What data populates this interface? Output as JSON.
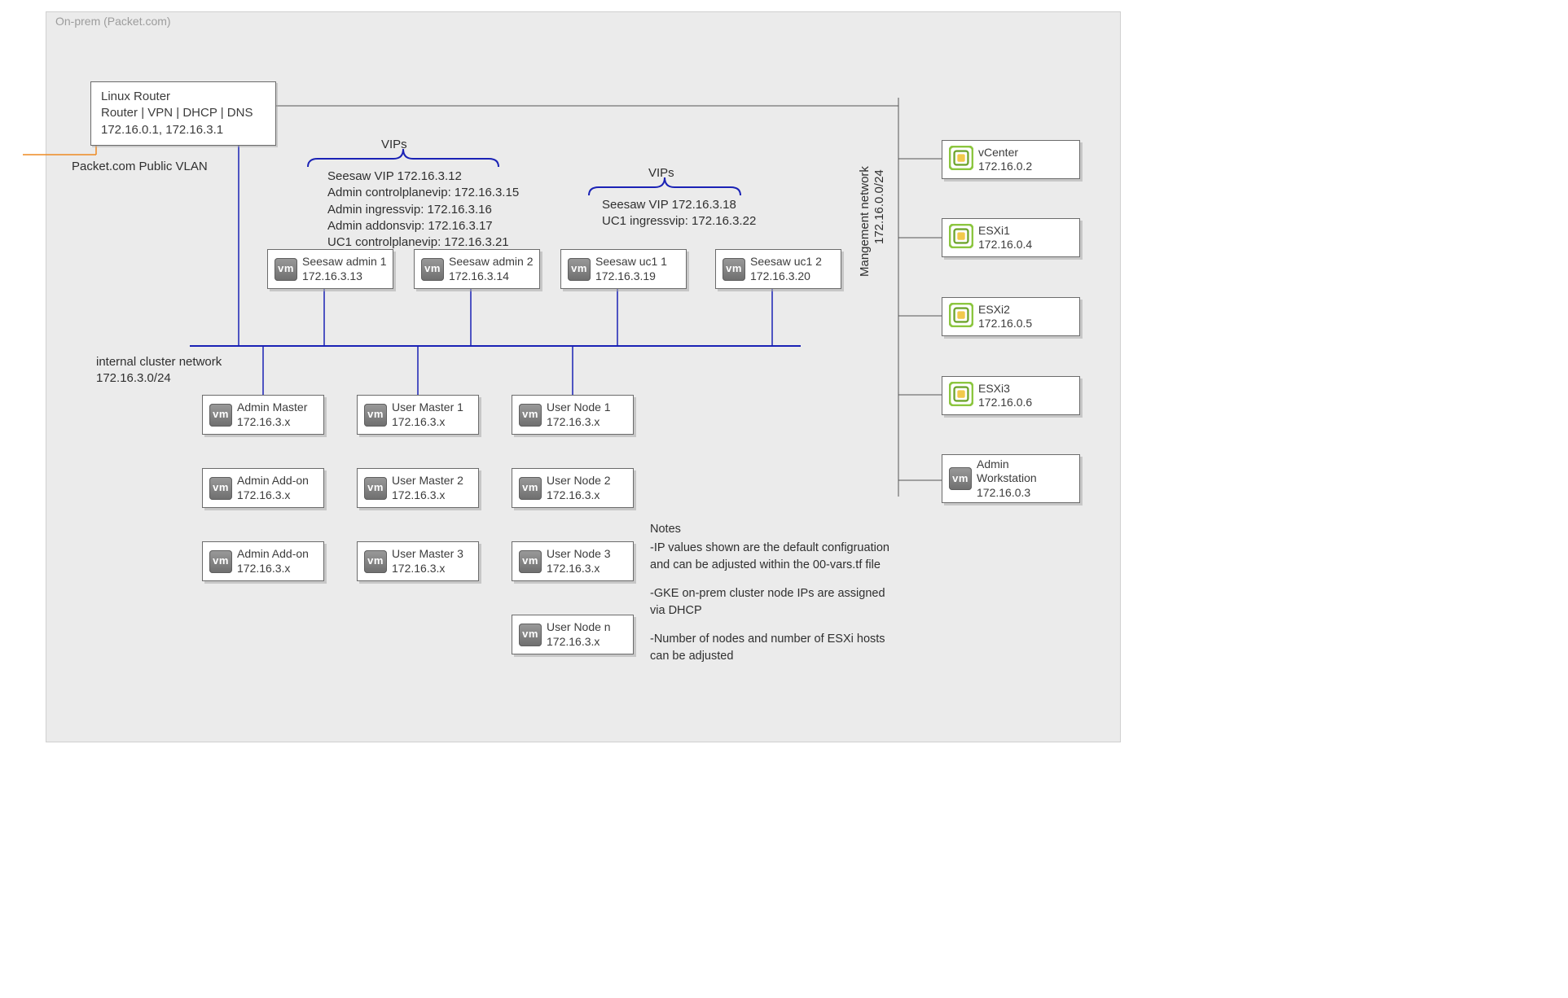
{
  "colors": {
    "panel_bg": "#ebebeb",
    "panel_border": "#d0d0d0",
    "box_bg": "#ffffff",
    "box_border": "#6b6b6b",
    "box_shadow": "rgba(170,170,170,.55)",
    "line_blue": "#1a22b5",
    "line_black": "#555555",
    "line_orange": "#ee8a22",
    "vsphere_green": "#8cc63f",
    "vsphere_green_dark": "#6fa52f",
    "vsphere_gold": "#f2c94c",
    "vm_grad_light": "#9a9a9a",
    "vm_grad_dark": "#6e6e6e",
    "text": "#3c3c3c",
    "muted": "#9c9c9c"
  },
  "panel": {
    "title": "On-prem (Packet.com)"
  },
  "router": {
    "line1": "Linux Router",
    "line2": "Router | VPN | DHCP | DNS",
    "line3": "172.16.0.1, 172.16.3.1"
  },
  "public_vlan_label": "Packet.com Public VLAN",
  "vips_label_left": "VIPs",
  "vips_label_right": "VIPs",
  "vips_left": [
    "Seesaw VIP 172.16.3.12",
    "Admin controlplanevip: 172.16.3.15",
    "Admin ingressvip: 172.16.3.16",
    "Admin addonsvip: 172.16.3.17",
    "UC1 controlplanevip: 172.16.3.21"
  ],
  "vips_right": [
    "Seesaw VIP 172.16.3.18",
    "UC1 ingressvip: 172.16.3.22"
  ],
  "seesaw": [
    {
      "name": "Seesaw admin 1",
      "ip": "172.16.3.13"
    },
    {
      "name": "Seesaw admin 2",
      "ip": "172.16.3.14"
    },
    {
      "name": "Seesaw uc1 1",
      "ip": "172.16.3.19"
    },
    {
      "name": "Seesaw uc1 2",
      "ip": "172.16.3.20"
    }
  ],
  "cluster_net": {
    "line1": "internal cluster network",
    "line2": "172.16.3.0/24"
  },
  "nodes_col1": [
    {
      "name": "Admin Master",
      "ip": "172.16.3.x"
    },
    {
      "name": "Admin Add-on",
      "ip": "172.16.3.x"
    },
    {
      "name": "Admin Add-on",
      "ip": "172.16.3.x"
    }
  ],
  "nodes_col2": [
    {
      "name": "User Master 1",
      "ip": "172.16.3.x"
    },
    {
      "name": "User Master 2",
      "ip": "172.16.3.x"
    },
    {
      "name": "User Master 3",
      "ip": "172.16.3.x"
    }
  ],
  "nodes_col3": [
    {
      "name": "User Node 1",
      "ip": "172.16.3.x"
    },
    {
      "name": "User Node 2",
      "ip": "172.16.3.x"
    },
    {
      "name": "User Node 3",
      "ip": "172.16.3.x"
    },
    {
      "name": "User Node n",
      "ip": "172.16.3.x"
    }
  ],
  "mgmt_net": {
    "line1": "Mangement network",
    "line2": "172.16.0.0/24"
  },
  "mgmt_hosts": [
    {
      "name": "vCenter",
      "ip": "172.16.0.2",
      "icon": "vsphere"
    },
    {
      "name": "ESXi1",
      "ip": "172.16.0.4",
      "icon": "vsphere"
    },
    {
      "name": "ESXi2",
      "ip": "172.16.0.5",
      "icon": "vsphere"
    },
    {
      "name": "ESXi3",
      "ip": "172.16.0.6",
      "icon": "vsphere"
    },
    {
      "name": "Admin\nWorkstation",
      "ip": "172.16.0.3",
      "icon": "vm"
    }
  ],
  "notes": {
    "heading": "Notes",
    "items": [
      "-IP values shown are the default configruation and can be adjusted within the 00-vars.tf file",
      "-GKE on-prem cluster node IPs are assigned via DHCP",
      "-Number of nodes and number of ESXi hosts can be adjusted"
    ]
  }
}
